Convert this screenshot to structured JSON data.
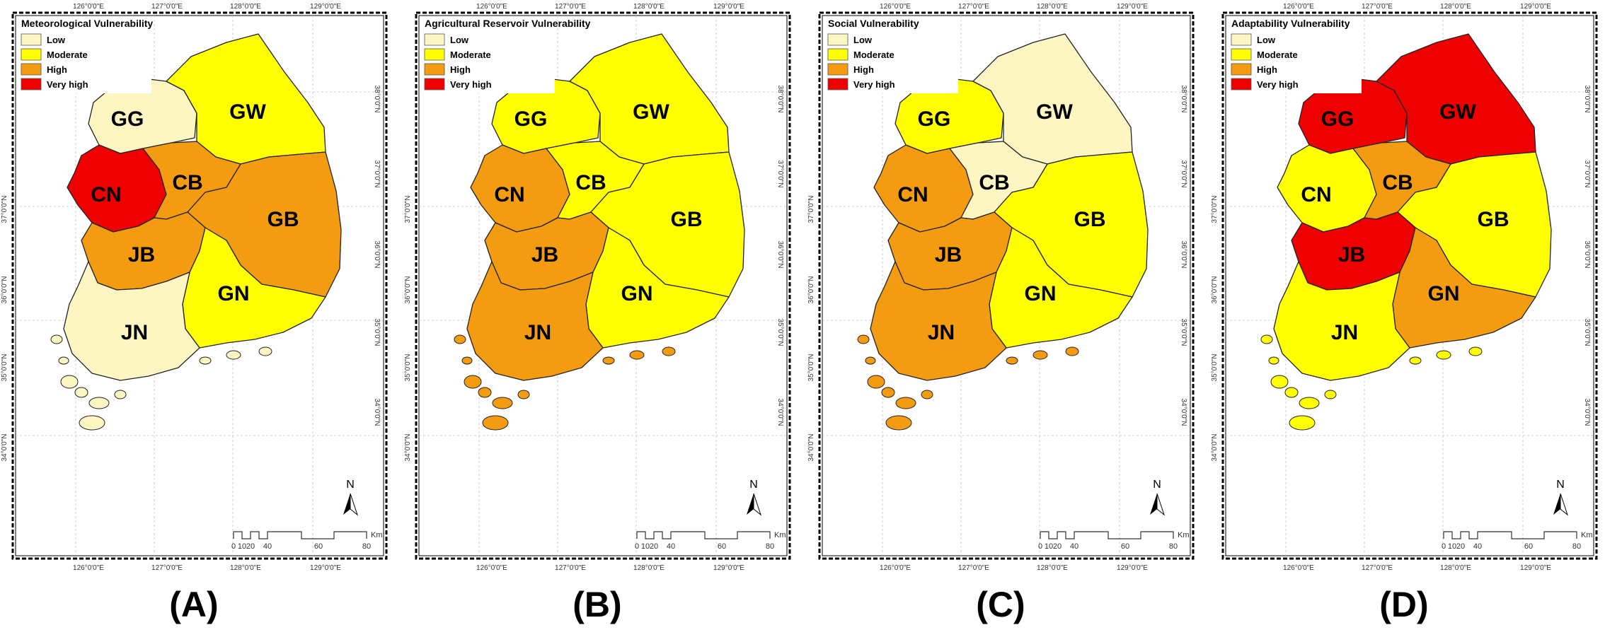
{
  "colors": {
    "low": "#fdf6c3",
    "moderate": "#ffff00",
    "high": "#f39c12",
    "very_high": "#ee0000",
    "no_data": "#f2f2f2"
  },
  "legend_levels": [
    {
      "key": "low",
      "label": "Low"
    },
    {
      "key": "moderate",
      "label": "Moderate"
    },
    {
      "key": "high",
      "label": "High"
    },
    {
      "key": "very_high",
      "label": "Very high"
    }
  ],
  "top_ticks": [
    "126°0'0\"E",
    "127°0'0\"E",
    "128°0'0\"E",
    "129°0'0\"E"
  ],
  "bottom_ticks": [
    "126°0'0\"E",
    "127°0'0\"E",
    "128°0'0\"E",
    "129°0'0\"E"
  ],
  "left_ticks": [
    "37°0'0\"N",
    "36°0'0\"N",
    "35°0'0\"N",
    "34°0'0\"N"
  ],
  "right_ticks": [
    "38°0'0\"N",
    "37°0'0\"N",
    "36°0'0\"N",
    "35°0'0\"N",
    "34°0'0\"N"
  ],
  "scale_labels": [
    "0",
    "10",
    "20",
    "40",
    "60",
    "80"
  ],
  "scale_unit": "Km",
  "north_label": "N",
  "region_labels": [
    "GG",
    "GW",
    "CN",
    "CB",
    "GB",
    "JB",
    "GN",
    "JN"
  ],
  "panels": [
    {
      "id": "A",
      "title": "Meteorological Vulnerability",
      "caption": "(A)",
      "provinces": {
        "GG": "low",
        "GW": "moderate",
        "CN": "very_high",
        "CB": "high",
        "GB": "high",
        "JB": "high",
        "GN": "moderate",
        "JN": "low"
      }
    },
    {
      "id": "B",
      "title": "Agricultural Reservoir Vulnerability",
      "caption": "(B)",
      "provinces": {
        "GG": "moderate",
        "GW": "moderate",
        "CN": "high",
        "CB": "moderate",
        "GB": "moderate",
        "JB": "high",
        "GN": "moderate",
        "JN": "high"
      }
    },
    {
      "id": "C",
      "title": "Social Vulnerability",
      "caption": "(C)",
      "provinces": {
        "GG": "moderate",
        "GW": "low",
        "CN": "high",
        "CB": "low",
        "GB": "moderate",
        "JB": "high",
        "GN": "moderate",
        "JN": "high"
      }
    },
    {
      "id": "D",
      "title": "Adaptability Vulnerability",
      "caption": "(D)",
      "provinces": {
        "GG": "very_high",
        "GW": "very_high",
        "CN": "moderate",
        "CB": "high",
        "GB": "moderate",
        "JB": "very_high",
        "GN": "high",
        "JN": "moderate"
      }
    }
  ]
}
